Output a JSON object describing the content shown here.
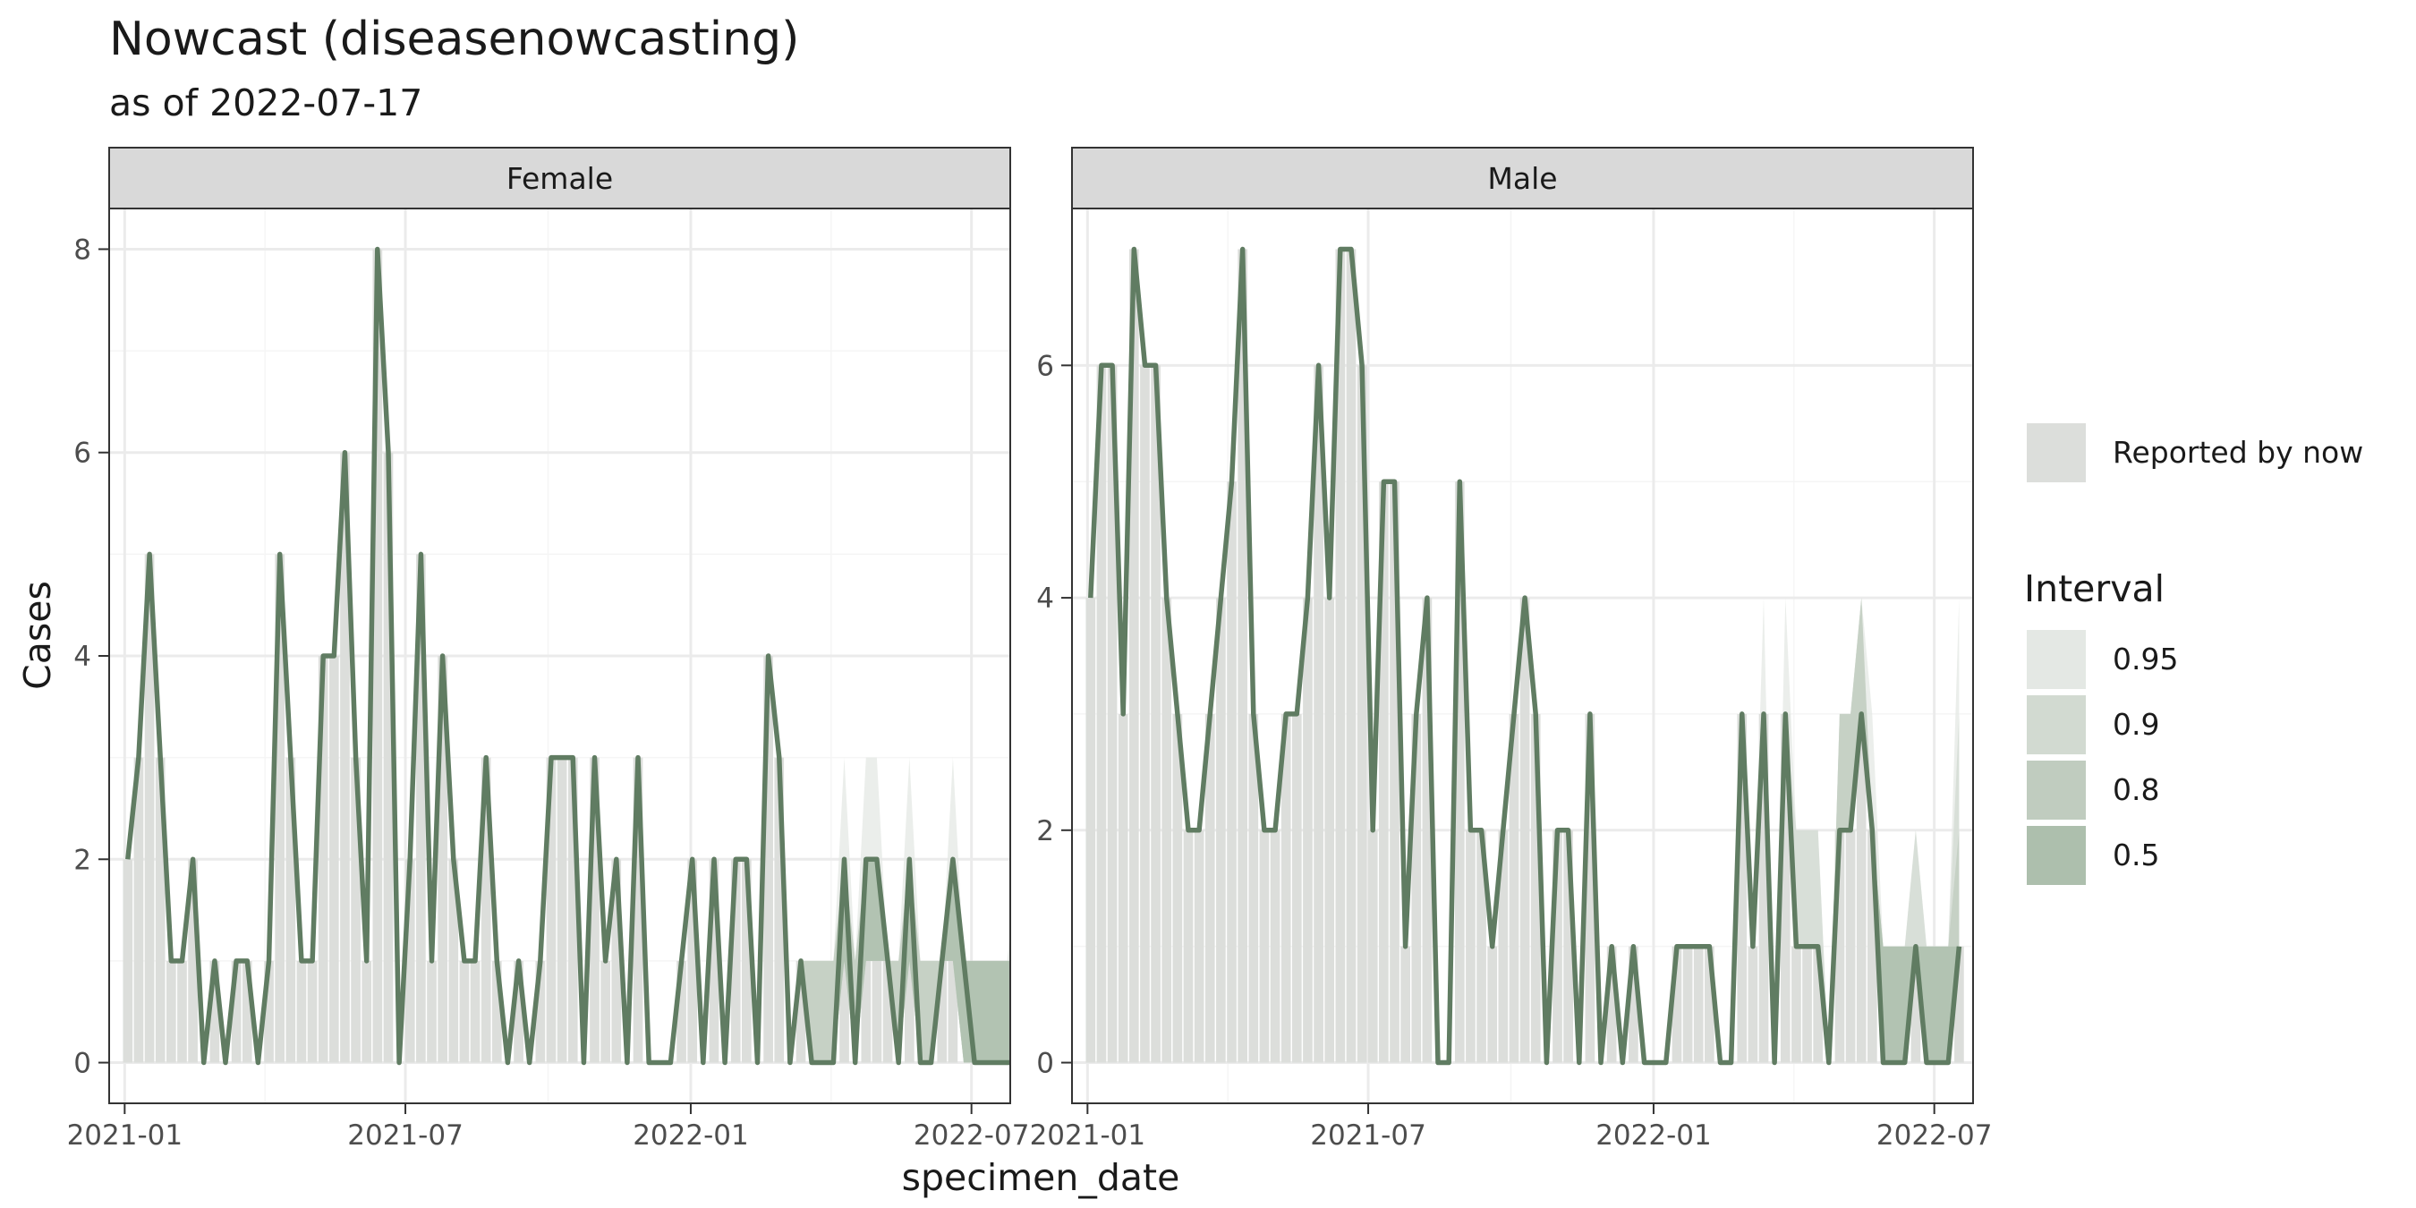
{
  "chart_data": {
    "type": "bar",
    "title": "Nowcast (diseasenowcasting)",
    "subtitle": "as of 2022-07-17",
    "xlabel": "specimen_date",
    "ylabel": "Cases",
    "x_ticks": [
      "2021-01",
      "2021-07",
      "2022-01",
      "2022-07"
    ],
    "x_range": [
      "2020-12-22",
      "2022-07-26"
    ],
    "grid": true,
    "legend_position": "right",
    "legend": {
      "reported_label": "Reported by now",
      "interval_title": "Interval",
      "interval_levels": [
        "0.95",
        "0.9",
        "0.8",
        "0.5"
      ]
    },
    "colors": {
      "line": "#607c62",
      "reported_bar": "#dcdedb",
      "interval_0.95": "#e4e8e4",
      "interval_0.9": "#d2dad1",
      "interval_0.8": "#c0ccbf",
      "interval_0.5": "#adbfad",
      "strip_fill": "#d9d9d9",
      "grid_major": "#ebebeb",
      "grid_minor": "#f5f5f5"
    },
    "panels": [
      {
        "name": "Female",
        "y_range": [
          -0.4,
          8.4
        ],
        "y_ticks": [
          0,
          2,
          4,
          6,
          8
        ],
        "start_date": "2021-01-03",
        "step_days": 7,
        "nowcast": [
          2,
          3,
          5,
          3,
          1,
          1,
          2,
          0,
          1,
          0,
          1,
          1,
          0,
          1,
          5,
          3,
          1,
          1,
          4,
          4,
          6,
          3,
          1,
          8,
          6,
          0,
          2,
          5,
          1,
          4,
          2,
          1,
          1,
          3,
          1,
          0,
          1,
          0,
          1,
          3,
          3,
          3,
          0,
          3,
          1,
          2,
          0,
          3,
          0,
          0,
          0,
          1,
          2,
          0,
          2,
          0,
          2,
          2,
          0,
          4,
          3,
          0,
          1,
          0,
          0,
          0,
          2,
          0,
          2,
          2,
          1,
          0,
          2,
          0,
          0,
          1,
          2,
          1,
          0,
          0,
          0,
          0,
          0
        ],
        "reported": [
          2,
          3,
          5,
          3,
          1,
          1,
          2,
          0,
          1,
          0,
          1,
          1,
          0,
          1,
          5,
          3,
          1,
          1,
          4,
          4,
          6,
          3,
          1,
          8,
          6,
          0,
          2,
          5,
          1,
          4,
          2,
          1,
          1,
          3,
          1,
          0,
          1,
          0,
          1,
          3,
          3,
          3,
          0,
          3,
          1,
          2,
          0,
          3,
          0,
          0,
          0,
          1,
          2,
          0,
          2,
          0,
          2,
          2,
          0,
          4,
          3,
          0,
          1,
          0,
          0,
          0,
          1,
          0,
          1,
          1,
          1,
          0,
          1,
          0,
          0,
          1,
          1,
          0,
          0,
          0,
          0,
          0,
          0
        ],
        "upper_95": [
          2,
          3,
          5,
          3,
          1,
          1,
          2,
          0,
          1,
          0,
          1,
          1,
          0,
          1,
          5,
          3,
          1,
          1,
          4,
          4,
          6,
          3,
          1,
          8,
          6,
          0,
          2,
          5,
          1,
          4,
          2,
          1,
          1,
          3,
          1,
          0,
          1,
          0,
          1,
          3,
          3,
          3,
          0,
          3,
          1,
          2,
          0,
          3,
          0,
          0,
          0,
          1,
          2,
          0,
          2,
          0,
          2,
          2,
          0,
          4,
          3,
          0,
          1,
          1,
          1,
          1,
          3,
          1,
          3,
          3,
          1,
          1,
          3,
          1,
          1,
          1,
          3,
          1,
          1,
          1,
          1,
          1,
          2
        ],
        "upper_90": [
          2,
          3,
          5,
          3,
          1,
          1,
          2,
          0,
          1,
          0,
          1,
          1,
          0,
          1,
          5,
          3,
          1,
          1,
          4,
          4,
          6,
          3,
          1,
          8,
          6,
          0,
          2,
          5,
          1,
          4,
          2,
          1,
          1,
          3,
          1,
          0,
          1,
          0,
          1,
          3,
          3,
          3,
          0,
          3,
          1,
          2,
          0,
          3,
          0,
          0,
          0,
          1,
          2,
          0,
          2,
          0,
          2,
          2,
          0,
          4,
          3,
          0,
          1,
          1,
          1,
          1,
          2,
          1,
          2,
          2,
          1,
          1,
          2,
          1,
          1,
          1,
          2,
          1,
          1,
          1,
          1,
          1,
          1
        ],
        "upper_80": [
          2,
          3,
          5,
          3,
          1,
          1,
          2,
          0,
          1,
          0,
          1,
          1,
          0,
          1,
          5,
          3,
          1,
          1,
          4,
          4,
          6,
          3,
          1,
          8,
          6,
          0,
          2,
          5,
          1,
          4,
          2,
          1,
          1,
          3,
          1,
          0,
          1,
          0,
          1,
          3,
          3,
          3,
          0,
          3,
          1,
          2,
          0,
          3,
          0,
          0,
          0,
          1,
          2,
          0,
          2,
          0,
          2,
          2,
          0,
          4,
          3,
          0,
          1,
          1,
          1,
          1,
          2,
          1,
          2,
          2,
          1,
          1,
          2,
          1,
          1,
          1,
          2,
          1,
          1,
          1,
          1,
          1,
          1
        ],
        "upper_50": [
          2,
          3,
          5,
          3,
          1,
          1,
          2,
          0,
          1,
          0,
          1,
          1,
          0,
          1,
          5,
          3,
          1,
          1,
          4,
          4,
          6,
          3,
          1,
          8,
          6,
          0,
          2,
          5,
          1,
          4,
          2,
          1,
          1,
          3,
          1,
          0,
          1,
          0,
          1,
          3,
          3,
          3,
          0,
          3,
          1,
          2,
          0,
          3,
          0,
          0,
          0,
          1,
          2,
          0,
          2,
          0,
          2,
          2,
          0,
          4,
          3,
          0,
          1,
          0,
          0,
          0,
          2,
          0,
          2,
          2,
          1,
          0,
          2,
          0,
          0,
          1,
          2,
          1,
          1,
          1,
          1,
          1,
          1
        ]
      },
      {
        "name": "Male",
        "y_range": [
          -0.35,
          7.35
        ],
        "y_ticks": [
          0,
          2,
          4,
          6
        ],
        "start_date": "2021-01-03",
        "step_days": 7,
        "nowcast": [
          4,
          6,
          6,
          3,
          7,
          6,
          6,
          4,
          3,
          2,
          2,
          3,
          4,
          5,
          7,
          3,
          2,
          2,
          3,
          3,
          4,
          6,
          4,
          7,
          7,
          6,
          2,
          5,
          5,
          1,
          3,
          4,
          0,
          0,
          5,
          2,
          2,
          1,
          2,
          3,
          4,
          3,
          0,
          2,
          2,
          0,
          3,
          0,
          1,
          0,
          1,
          0,
          0,
          0,
          1,
          1,
          1,
          1,
          0,
          0,
          3,
          1,
          3,
          0,
          3,
          1,
          1,
          1,
          0,
          2,
          2,
          3,
          2,
          0,
          0,
          0,
          1,
          0,
          0,
          0,
          1
        ],
        "reported": [
          4,
          6,
          6,
          3,
          7,
          6,
          6,
          4,
          3,
          2,
          2,
          3,
          4,
          5,
          7,
          3,
          2,
          2,
          3,
          3,
          4,
          6,
          4,
          7,
          7,
          6,
          2,
          5,
          5,
          1,
          3,
          4,
          0,
          0,
          5,
          2,
          2,
          1,
          2,
          3,
          4,
          3,
          0,
          2,
          2,
          0,
          3,
          0,
          1,
          0,
          1,
          0,
          0,
          0,
          1,
          1,
          1,
          1,
          0,
          0,
          3,
          1,
          3,
          0,
          3,
          1,
          1,
          1,
          0,
          2,
          2,
          3,
          2,
          0,
          0,
          0,
          1,
          0,
          0,
          0,
          1
        ],
        "upper_95": [
          4,
          6,
          6,
          3,
          7,
          6,
          6,
          4,
          3,
          2,
          2,
          3,
          4,
          5,
          7,
          3,
          2,
          2,
          3,
          3,
          4,
          6,
          4,
          7,
          7,
          6,
          2,
          5,
          5,
          1,
          3,
          4,
          0,
          0,
          5,
          2,
          2,
          1,
          2,
          3,
          4,
          3,
          0,
          2,
          2,
          0,
          3,
          0,
          1,
          0,
          1,
          0,
          0,
          0,
          1,
          1,
          1,
          1,
          0,
          0,
          3,
          1,
          4,
          0,
          4,
          2,
          2,
          2,
          0,
          3,
          3,
          4,
          3,
          1,
          1,
          1,
          2,
          1,
          1,
          1,
          4
        ],
        "upper_90": [
          4,
          6,
          6,
          3,
          7,
          6,
          6,
          4,
          3,
          2,
          2,
          3,
          4,
          5,
          7,
          3,
          2,
          2,
          3,
          3,
          4,
          6,
          4,
          7,
          7,
          6,
          2,
          5,
          5,
          1,
          3,
          4,
          0,
          0,
          5,
          2,
          2,
          1,
          2,
          3,
          4,
          3,
          0,
          2,
          2,
          0,
          3,
          0,
          1,
          0,
          1,
          0,
          0,
          0,
          1,
          1,
          1,
          1,
          0,
          0,
          3,
          1,
          3,
          0,
          3,
          2,
          2,
          2,
          0,
          3,
          3,
          4,
          2,
          1,
          1,
          1,
          2,
          1,
          1,
          1,
          3
        ],
        "upper_80": [
          4,
          6,
          6,
          3,
          7,
          6,
          6,
          4,
          3,
          2,
          2,
          3,
          4,
          5,
          7,
          3,
          2,
          2,
          3,
          3,
          4,
          6,
          4,
          7,
          7,
          6,
          2,
          5,
          5,
          1,
          3,
          4,
          0,
          0,
          5,
          2,
          2,
          1,
          2,
          3,
          4,
          3,
          0,
          2,
          2,
          0,
          3,
          0,
          1,
          0,
          1,
          0,
          0,
          0,
          1,
          1,
          1,
          1,
          0,
          0,
          3,
          1,
          3,
          0,
          3,
          1,
          1,
          1,
          0,
          3,
          3,
          4,
          2,
          1,
          1,
          1,
          1,
          1,
          1,
          1,
          2
        ],
        "upper_50": [
          4,
          6,
          6,
          3,
          7,
          6,
          6,
          4,
          3,
          2,
          2,
          3,
          4,
          5,
          7,
          3,
          2,
          2,
          3,
          3,
          4,
          6,
          4,
          7,
          7,
          6,
          2,
          5,
          5,
          1,
          3,
          4,
          0,
          0,
          5,
          2,
          2,
          1,
          2,
          3,
          4,
          3,
          0,
          2,
          2,
          0,
          3,
          0,
          1,
          0,
          1,
          0,
          0,
          0,
          1,
          1,
          1,
          1,
          0,
          0,
          3,
          1,
          3,
          0,
          3,
          1,
          1,
          1,
          0,
          2,
          2,
          3,
          2,
          1,
          1,
          1,
          1,
          1,
          1,
          1,
          1
        ]
      }
    ]
  }
}
